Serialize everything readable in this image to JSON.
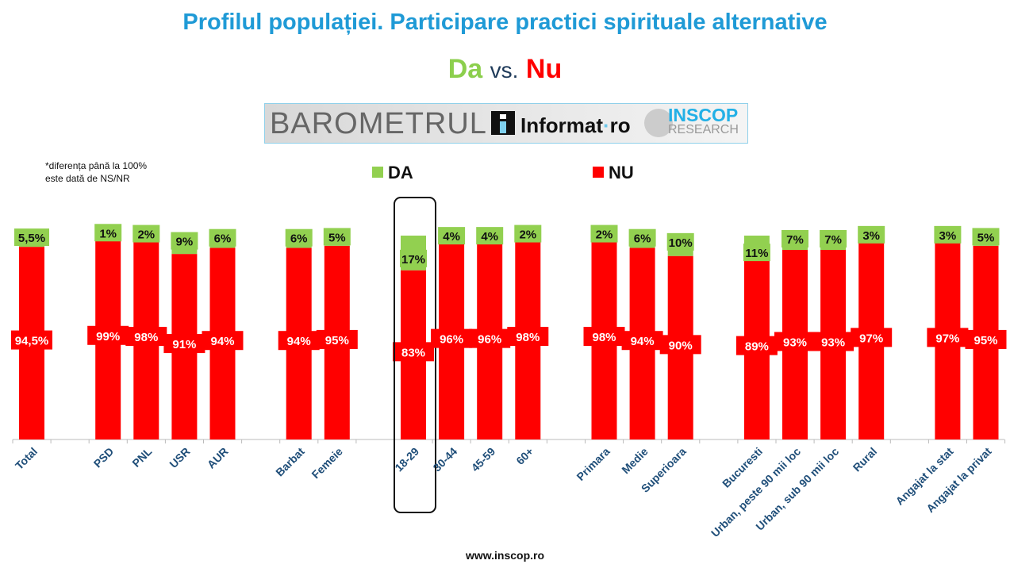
{
  "title": "Profilul populației. Participare practici spirituale alternative",
  "subtitle": {
    "da": "Da",
    "vs": "vs.",
    "nu": "Nu"
  },
  "logo": {
    "barometrul": "BAROMETRUL",
    "informat": "Informat",
    "informat_dot": "·",
    "informat_ro": "ro",
    "inscop": "INSCOP",
    "research": "RESEARCH"
  },
  "note": [
    "*diferența până la 100%",
    "este dată de NS/NR"
  ],
  "footer": "www.inscop.ro",
  "colors": {
    "da": "#92d050",
    "nu": "#ff0000",
    "title": "#1f9ad6",
    "axis_label": "#1f4e79"
  },
  "chart_data": {
    "type": "bar",
    "stacked": true,
    "title": "Profilul populației. Participare practici spirituale alternative",
    "legend": [
      "DA",
      "NU"
    ],
    "legend_position": "top",
    "ylim": [
      0,
      100
    ],
    "highlight": "18-29",
    "groups": [
      [
        "Total"
      ],
      [
        "PSD",
        "PNL",
        "USR",
        "AUR"
      ],
      [
        "Barbat",
        "Femeie"
      ],
      [
        "18-29",
        "30-44",
        "45-59",
        "60+"
      ],
      [
        "Primara",
        "Medie",
        "Superioara"
      ],
      [
        "Bucuresti",
        "Urban, peste 90 mii loc",
        "Urban, sub 90 mii loc",
        "Rural"
      ],
      [
        "Angajat la stat",
        "Angajat la privat"
      ]
    ],
    "categories": [
      "Total",
      "PSD",
      "PNL",
      "USR",
      "AUR",
      "Barbat",
      "Femeie",
      "18-29",
      "30-44",
      "45-59",
      "60+",
      "Primara",
      "Medie",
      "Superioara",
      "Bucuresti",
      "Urban, peste 90 mii loc",
      "Urban, sub 90 mii loc",
      "Rural",
      "Angajat la stat",
      "Angajat la privat"
    ],
    "series": [
      {
        "name": "DA",
        "values": [
          5.5,
          1,
          2,
          9,
          6,
          6,
          5,
          17,
          4,
          4,
          2,
          2,
          6,
          10,
          11,
          7,
          7,
          3,
          3,
          5
        ],
        "labels": [
          "5,5%",
          "1%",
          "2%",
          "9%",
          "6%",
          "6%",
          "5%",
          "17%",
          "4%",
          "4%",
          "2%",
          "2%",
          "6%",
          "10%",
          "11%",
          "7%",
          "7%",
          "3%",
          "3%",
          "5%"
        ]
      },
      {
        "name": "NU",
        "values": [
          94.5,
          99,
          98,
          91,
          94,
          94,
          95,
          83,
          96,
          96,
          98,
          98,
          94,
          90,
          89,
          93,
          93,
          97,
          97,
          95
        ],
        "labels": [
          "94,5%",
          "99%",
          "98%",
          "91%",
          "94%",
          "94%",
          "95%",
          "83%",
          "96%",
          "96%",
          "98%",
          "98%",
          "94%",
          "90%",
          "89%",
          "93%",
          "93%",
          "97%",
          "97%",
          "95%"
        ]
      }
    ]
  }
}
